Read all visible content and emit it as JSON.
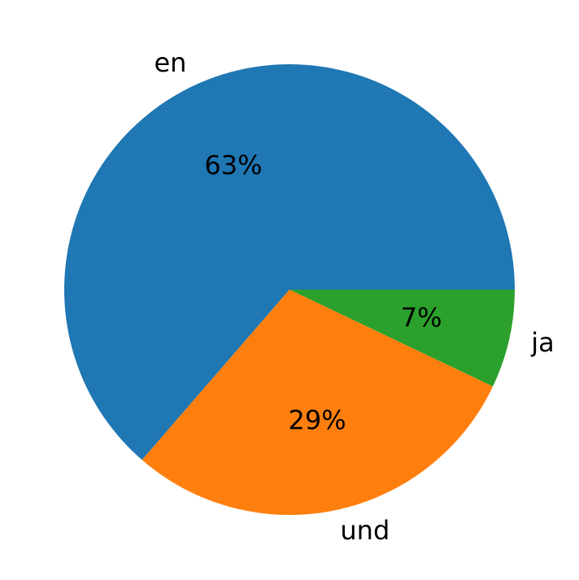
{
  "chart_data": {
    "type": "pie",
    "categories": [
      "en",
      "und",
      "ja"
    ],
    "values": [
      63,
      29,
      7
    ],
    "value_labels": [
      "63%",
      "29%",
      "7%"
    ],
    "colors": [
      "#1f77b4",
      "#ff7f0e",
      "#2ca02c"
    ]
  }
}
